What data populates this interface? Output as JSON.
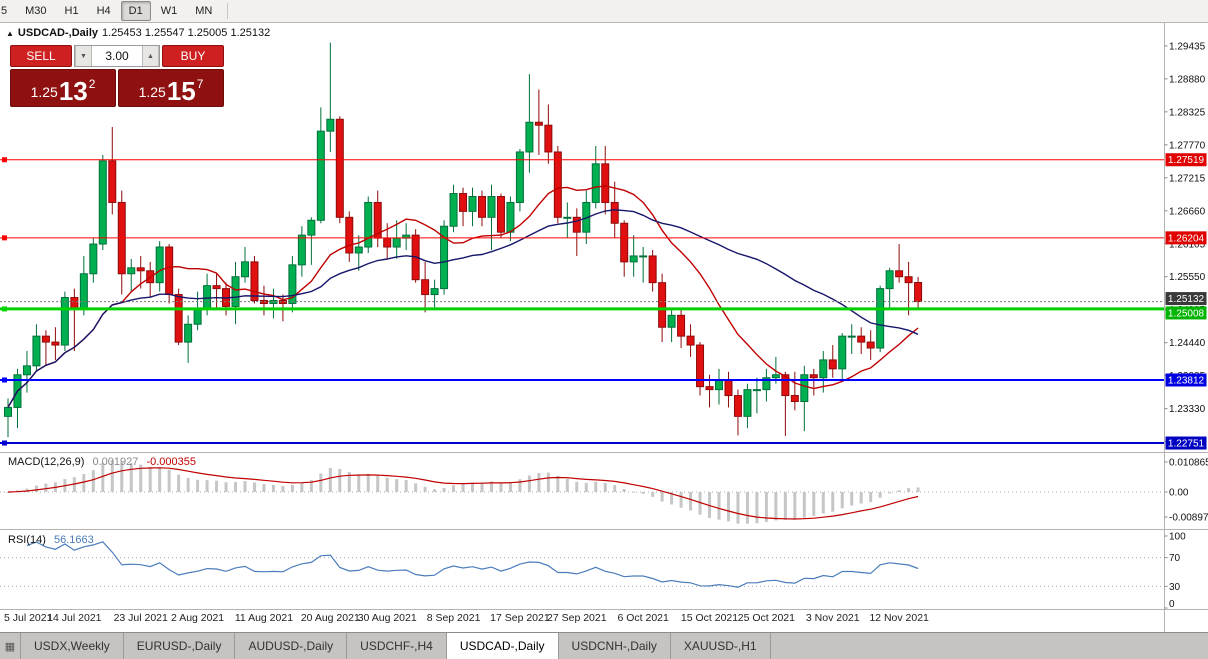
{
  "toolbar": {
    "timeframes": [
      "5",
      "M30",
      "H1",
      "H4",
      "D1",
      "W1",
      "MN"
    ],
    "active": "D1"
  },
  "symbol": {
    "arrow": "▲",
    "name": "USDCAD-,Daily",
    "ohlc": "1.25453 1.25547 1.25005 1.25132"
  },
  "trade": {
    "sell_label": "SELL",
    "buy_label": "BUY",
    "volume": "3.00",
    "vol_down_icon": "▼",
    "vol_up_icon": "▲",
    "sell_price_main": "1.25",
    "sell_price_pips": "13",
    "sell_price_sup": "2",
    "buy_price_main": "1.25",
    "buy_price_pips": "15",
    "buy_price_sup": "7"
  },
  "chart_data": {
    "type": "candlestick",
    "title": "USDCAD-,Daily",
    "y_ticks": [
      "1.29435",
      "1.28880",
      "1.28325",
      "1.27770",
      "1.27215",
      "1.26660",
      "1.26105",
      "1.25550",
      "1.24995",
      "1.24440",
      "1.23885",
      "1.23330",
      "1.22775"
    ],
    "dates": [
      {
        "i": 0,
        "label": "5 Jul 2021"
      },
      {
        "i": 7,
        "label": "14 Jul 2021"
      },
      {
        "i": 14,
        "label": "23 Jul 2021"
      },
      {
        "i": 20,
        "label": "2 Aug 2021"
      },
      {
        "i": 27,
        "label": "11 Aug 2021"
      },
      {
        "i": 34,
        "label": "20 Aug 2021"
      },
      {
        "i": 40,
        "label": "30 Aug 2021"
      },
      {
        "i": 47,
        "label": "8 Sep 2021"
      },
      {
        "i": 54,
        "label": "17 Sep 2021"
      },
      {
        "i": 60,
        "label": "27 Sep 2021"
      },
      {
        "i": 67,
        "label": "6 Oct 2021"
      },
      {
        "i": 74,
        "label": "15 Oct 2021"
      },
      {
        "i": 80,
        "label": "25 Oct 2021"
      },
      {
        "i": 87,
        "label": "3 Nov 2021"
      },
      {
        "i": 94,
        "label": "12 Nov 2021"
      }
    ],
    "candles": [
      [
        1.232,
        1.235,
        1.2285,
        1.2335
      ],
      [
        1.2335,
        1.24,
        1.23,
        1.239
      ],
      [
        1.239,
        1.243,
        1.236,
        1.2405
      ],
      [
        1.2405,
        1.2475,
        1.2395,
        1.2455
      ],
      [
        1.2455,
        1.2465,
        1.2405,
        1.2445
      ],
      [
        1.2445,
        1.247,
        1.2415,
        1.244
      ],
      [
        1.244,
        1.253,
        1.243,
        1.252
      ],
      [
        1.252,
        1.2535,
        1.243,
        1.25
      ],
      [
        1.25,
        1.259,
        1.249,
        1.256
      ],
      [
        1.256,
        1.262,
        1.2545,
        1.261
      ],
      [
        1.261,
        1.276,
        1.26,
        1.275
      ],
      [
        1.275,
        1.2807,
        1.266,
        1.268
      ],
      [
        1.268,
        1.27,
        1.2525,
        1.256
      ],
      [
        1.256,
        1.2585,
        1.253,
        1.257
      ],
      [
        1.257,
        1.259,
        1.2535,
        1.2565
      ],
      [
        1.2565,
        1.258,
        1.252,
        1.2545
      ],
      [
        1.2545,
        1.2615,
        1.253,
        1.2605
      ],
      [
        1.2605,
        1.261,
        1.251,
        1.2525
      ],
      [
        1.2525,
        1.2535,
        1.244,
        1.2445
      ],
      [
        1.2445,
        1.249,
        1.241,
        1.2475
      ],
      [
        1.2475,
        1.253,
        1.2465,
        1.25
      ],
      [
        1.25,
        1.256,
        1.249,
        1.254
      ],
      [
        1.254,
        1.256,
        1.25,
        1.2535
      ],
      [
        1.2535,
        1.2545,
        1.249,
        1.2505
      ],
      [
        1.2505,
        1.258,
        1.2475,
        1.2555
      ],
      [
        1.2555,
        1.2605,
        1.2545,
        1.258
      ],
      [
        1.258,
        1.259,
        1.251,
        1.2515
      ],
      [
        1.2515,
        1.254,
        1.249,
        1.251
      ],
      [
        1.251,
        1.2535,
        1.2485,
        1.2515
      ],
      [
        1.2515,
        1.2525,
        1.248,
        1.251
      ],
      [
        1.251,
        1.259,
        1.2495,
        1.2575
      ],
      [
        1.2575,
        1.264,
        1.2555,
        1.2625
      ],
      [
        1.2625,
        1.2655,
        1.2575,
        1.265
      ],
      [
        1.265,
        1.284,
        1.2645,
        1.28
      ],
      [
        1.28,
        1.2949,
        1.2765,
        1.282
      ],
      [
        1.282,
        1.2825,
        1.2645,
        1.2655
      ],
      [
        1.2655,
        1.2665,
        1.258,
        1.2595
      ],
      [
        1.2595,
        1.2625,
        1.2565,
        1.2605
      ],
      [
        1.2605,
        1.269,
        1.2595,
        1.268
      ],
      [
        1.268,
        1.27,
        1.2605,
        1.262
      ],
      [
        1.262,
        1.2645,
        1.2585,
        1.2605
      ],
      [
        1.2605,
        1.265,
        1.2585,
        1.262
      ],
      [
        1.262,
        1.2645,
        1.26,
        1.2625
      ],
      [
        1.2625,
        1.2635,
        1.2545,
        1.255
      ],
      [
        1.255,
        1.258,
        1.2495,
        1.2525
      ],
      [
        1.2525,
        1.255,
        1.25,
        1.2535
      ],
      [
        1.2535,
        1.265,
        1.2525,
        1.264
      ],
      [
        1.264,
        1.271,
        1.263,
        1.2695
      ],
      [
        1.2695,
        1.2705,
        1.264,
        1.2665
      ],
      [
        1.2665,
        1.2705,
        1.264,
        1.269
      ],
      [
        1.269,
        1.27,
        1.264,
        1.2655
      ],
      [
        1.2655,
        1.271,
        1.26,
        1.269
      ],
      [
        1.269,
        1.2695,
        1.262,
        1.263
      ],
      [
        1.263,
        1.269,
        1.2615,
        1.268
      ],
      [
        1.268,
        1.277,
        1.2665,
        1.2765
      ],
      [
        1.2765,
        1.2896,
        1.273,
        1.2815
      ],
      [
        1.2815,
        1.287,
        1.276,
        1.281
      ],
      [
        1.281,
        1.2845,
        1.2745,
        1.2765
      ],
      [
        1.2765,
        1.2775,
        1.2645,
        1.2655
      ],
      [
        1.2655,
        1.268,
        1.262,
        1.2655
      ],
      [
        1.2655,
        1.267,
        1.259,
        1.263
      ],
      [
        1.263,
        1.27,
        1.261,
        1.268
      ],
      [
        1.268,
        1.2775,
        1.267,
        1.2745
      ],
      [
        1.2745,
        1.2775,
        1.266,
        1.268
      ],
      [
        1.268,
        1.2715,
        1.262,
        1.2645
      ],
      [
        1.2645,
        1.265,
        1.2555,
        1.258
      ],
      [
        1.258,
        1.2625,
        1.2555,
        1.259
      ],
      [
        1.259,
        1.2605,
        1.2545,
        1.259
      ],
      [
        1.259,
        1.26,
        1.253,
        1.2545
      ],
      [
        1.2545,
        1.256,
        1.2445,
        1.247
      ],
      [
        1.247,
        1.25,
        1.2445,
        1.249
      ],
      [
        1.249,
        1.25,
        1.2435,
        1.2455
      ],
      [
        1.2455,
        1.2475,
        1.242,
        1.244
      ],
      [
        1.244,
        1.2445,
        1.2355,
        1.237
      ],
      [
        1.237,
        1.239,
        1.2335,
        1.2365
      ],
      [
        1.2365,
        1.24,
        1.234,
        1.238
      ],
      [
        1.238,
        1.2395,
        1.2335,
        1.2355
      ],
      [
        1.2355,
        1.2365,
        1.2288,
        1.232
      ],
      [
        1.232,
        1.2375,
        1.23,
        1.2365
      ],
      [
        1.2365,
        1.2385,
        1.2325,
        1.2365
      ],
      [
        1.2365,
        1.24,
        1.2345,
        1.2385
      ],
      [
        1.2385,
        1.242,
        1.2375,
        1.239
      ],
      [
        1.239,
        1.2395,
        1.2287,
        1.2355
      ],
      [
        1.2355,
        1.2395,
        1.233,
        1.2345
      ],
      [
        1.2345,
        1.2405,
        1.2295,
        1.239
      ],
      [
        1.239,
        1.24,
        1.2355,
        1.2385
      ],
      [
        1.2385,
        1.243,
        1.236,
        1.2415
      ],
      [
        1.2415,
        1.244,
        1.2385,
        1.24
      ],
      [
        1.24,
        1.246,
        1.238,
        1.2455
      ],
      [
        1.2455,
        1.2475,
        1.2425,
        1.2455
      ],
      [
        1.2455,
        1.247,
        1.2425,
        1.2445
      ],
      [
        1.2445,
        1.2465,
        1.2415,
        1.2435
      ],
      [
        1.2435,
        1.254,
        1.2428,
        1.2535
      ],
      [
        1.2535,
        1.257,
        1.25,
        1.2565
      ],
      [
        1.2565,
        1.261,
        1.2545,
        1.2555
      ],
      [
        1.2555,
        1.258,
        1.249,
        1.2545
      ],
      [
        1.25453,
        1.25547,
        1.25005,
        1.25132
      ]
    ],
    "moving_averages": [
      {
        "name": "ma-fast",
        "period": 13,
        "color": "#C00000"
      },
      {
        "name": "ma-slow",
        "period": 34,
        "color": "#16166B"
      }
    ],
    "levels": [
      {
        "price": 1.27519,
        "label": "1.27519",
        "color": "#FF0000",
        "width": 1,
        "badge": "#E00000",
        "badge_dy": 0
      },
      {
        "price": 1.26204,
        "label": "1.26204",
        "color": "#FF0000",
        "width": 1,
        "badge": "#E00000",
        "badge_dy": 0
      },
      {
        "price": 1.25008,
        "label": "1.25008",
        "color": "#00D200",
        "width": 3,
        "badge": "#00B400",
        "badge_dy": 4
      },
      {
        "price": 1.23812,
        "label": "1.23812",
        "color": "#0000FF",
        "width": 2,
        "badge": "#0000E0",
        "badge_dy": 0
      },
      {
        "price": 1.22751,
        "label": "1.22751",
        "color": "#0000D0",
        "width": 2,
        "badge": "#0000C0",
        "badge_dy": 0
      }
    ],
    "current_price": {
      "value": 1.25132,
      "label": "1.25132",
      "badge": "#3A3A3A",
      "badge_dy": -3
    },
    "macd": {
      "name": "MACD(12,26,9)",
      "value_main": "0.001927",
      "value_signal": "-0.000355",
      "params": [
        12,
        26,
        9
      ],
      "ticks": [
        "0.010865",
        "0.00",
        "-0.008975"
      ]
    },
    "rsi": {
      "name": "RSI(14)",
      "value": "56.1663",
      "period": 14,
      "ticks": [
        100,
        70,
        30,
        0
      ],
      "dotted_levels": [
        70,
        30
      ]
    }
  },
  "colors": {
    "up": "#00B050",
    "up_stroke": "#00703A",
    "down": "#E01010",
    "down_stroke": "#8E0A0A",
    "macd_hist": "#C6C6C6",
    "macd_signal": "#C00000",
    "rsi_line": "#4B7DBB"
  },
  "bottom_tabs": {
    "items": [
      "USDX,Weekly",
      "EURUSD-,Daily",
      "AUDUSD-,Daily",
      "USDCHF-,H4",
      "USDCAD-,Daily",
      "USDCNH-,Daily",
      "XAUUSD-,H1"
    ],
    "active": "USDCAD-,Daily"
  }
}
